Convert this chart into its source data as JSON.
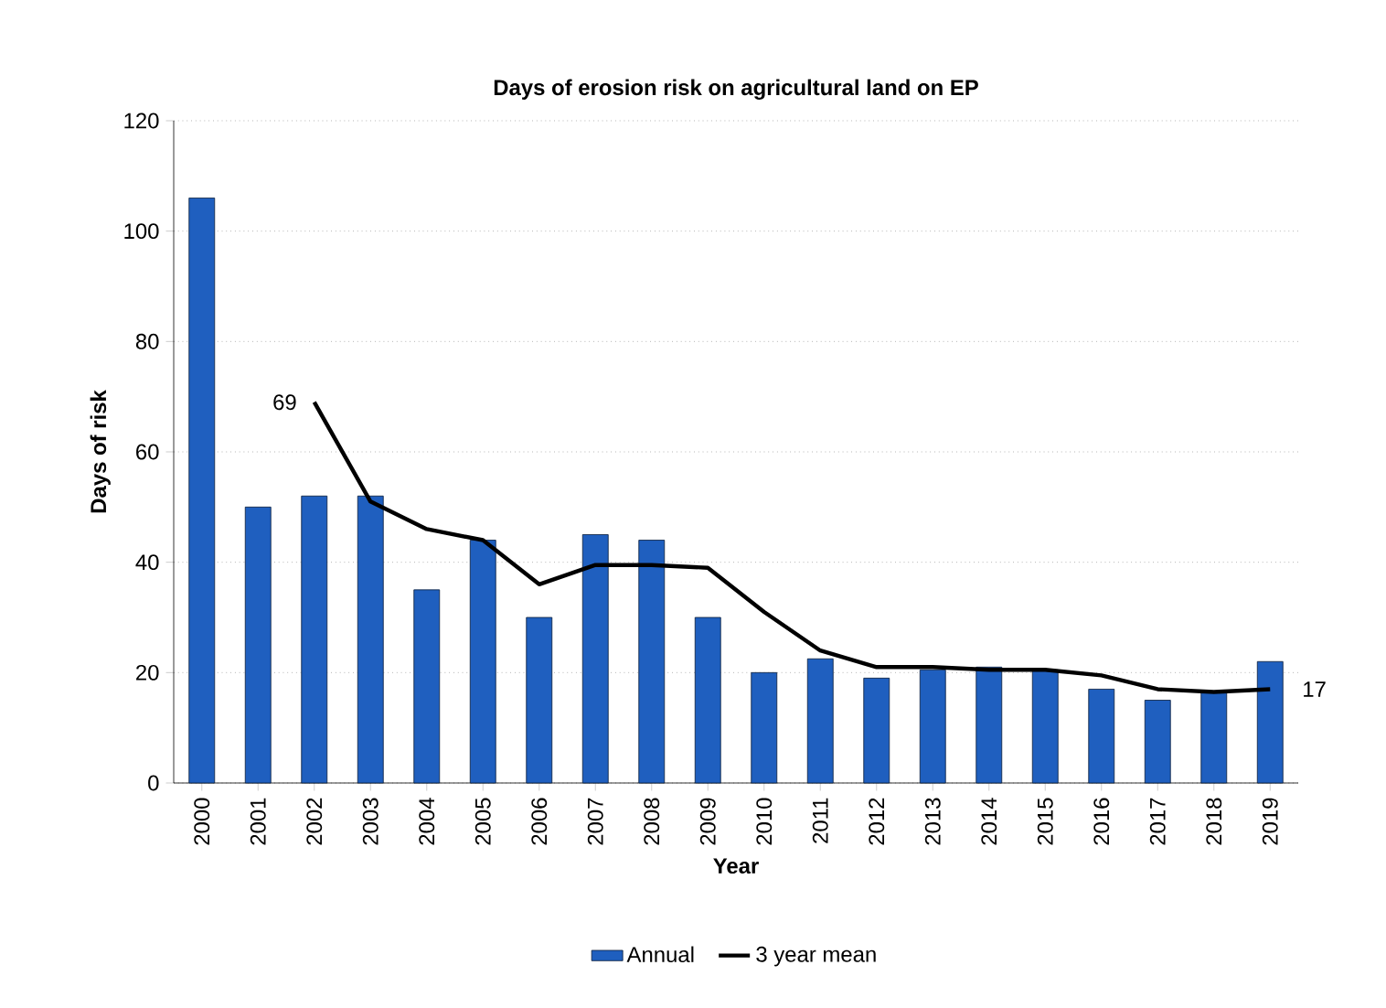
{
  "chart_data": {
    "type": "bar",
    "title": "Days of erosion risk on agricultural land on EP",
    "xlabel": "Year",
    "ylabel": "Days of risk",
    "categories": [
      "2000",
      "2001",
      "2002",
      "2003",
      "2004",
      "2005",
      "2006",
      "2007",
      "2008",
      "2009",
      "2010",
      "2011",
      "2012",
      "2013",
      "2014",
      "2015",
      "2016",
      "2017",
      "2018",
      "2019"
    ],
    "series": [
      {
        "name": "Annual",
        "color": "#1f5fbf",
        "values": [
          106,
          50,
          52,
          52,
          35,
          44,
          30,
          45,
          44,
          30,
          20,
          22.5,
          19,
          20.5,
          21,
          20.5,
          17,
          15,
          16.5,
          22
        ]
      },
      {
        "name": "3 year mean",
        "type": "line",
        "color": "#000000",
        "line_style": "solid",
        "marker": "none",
        "values": [
          null,
          null,
          69,
          51,
          46,
          44,
          36,
          39.5,
          39.5,
          39,
          31,
          24,
          21,
          21,
          20.5,
          20.5,
          19.5,
          17,
          16.5,
          17
        ],
        "value_labels": [
          null,
          null,
          "69",
          null,
          null,
          null,
          null,
          null,
          null,
          null,
          null,
          null,
          null,
          null,
          null,
          null,
          null,
          null,
          null,
          "17"
        ]
      }
    ],
    "ylim": [
      0,
      120
    ],
    "yticks": [
      0,
      20,
      40,
      60,
      80,
      100,
      120
    ],
    "grid": "y",
    "legend": "bottom"
  }
}
